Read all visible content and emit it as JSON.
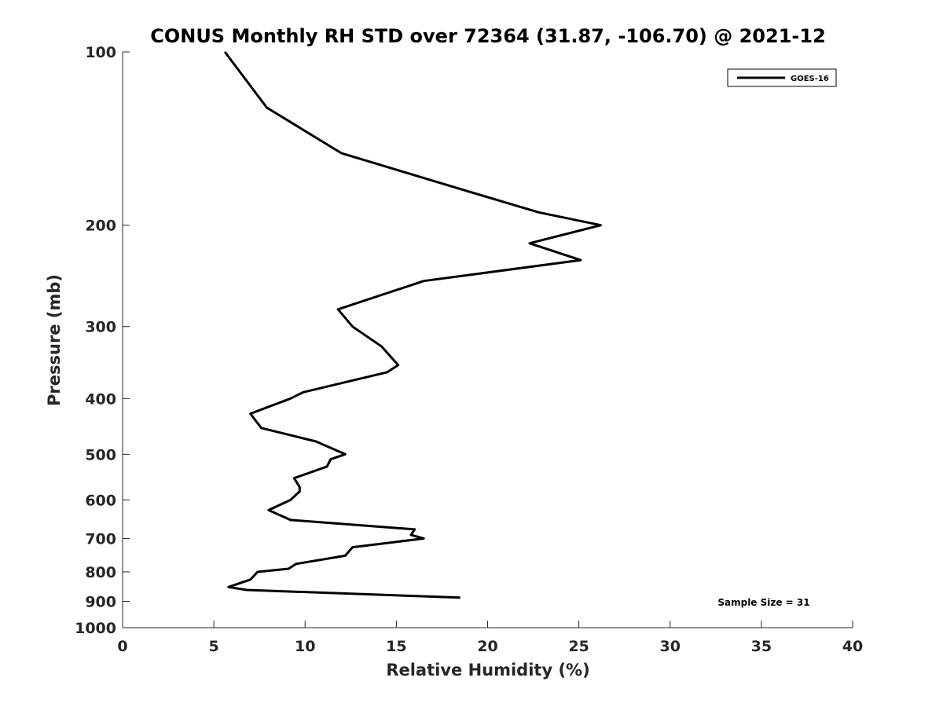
{
  "chart_data": {
    "type": "line",
    "title": "CONUS Monthly RH STD over 72364 (31.87, -106.70) @ 2021-12",
    "xlabel": "Relative Humidity (%)",
    "ylabel": "Pressure (mb)",
    "xlim": [
      0,
      40
    ],
    "ylim": [
      100,
      1000
    ],
    "y_scale": "log",
    "y_reversed": true,
    "x_ticks": [
      "0",
      "5",
      "10",
      "15",
      "20",
      "25",
      "30",
      "35",
      "40"
    ],
    "y_ticks": [
      "100",
      "200",
      "300",
      "400",
      "500",
      "600",
      "700",
      "800",
      "900",
      "1000"
    ],
    "grid": false,
    "legend_position": "top-right",
    "annotation": "Sample Size = 31",
    "series": [
      {
        "name": "GOES-16",
        "color": "#000000",
        "points": [
          [
            5.6,
            100
          ],
          [
            7.9,
            125
          ],
          [
            12.0,
            150
          ],
          [
            19.0,
            175
          ],
          [
            22.8,
            190
          ],
          [
            26.2,
            200
          ],
          [
            22.3,
            215
          ],
          [
            25.1,
            230
          ],
          [
            16.5,
            250
          ],
          [
            11.8,
            280
          ],
          [
            12.6,
            300
          ],
          [
            14.2,
            325
          ],
          [
            15.1,
            350
          ],
          [
            14.5,
            360
          ],
          [
            9.9,
            390
          ],
          [
            9.2,
            400
          ],
          [
            7.0,
            425
          ],
          [
            7.6,
            450
          ],
          [
            10.6,
            475
          ],
          [
            12.2,
            500
          ],
          [
            11.4,
            510
          ],
          [
            11.2,
            525
          ],
          [
            9.4,
            550
          ],
          [
            9.7,
            570
          ],
          [
            9.7,
            580
          ],
          [
            9.2,
            600
          ],
          [
            8.0,
            625
          ],
          [
            9.2,
            650
          ],
          [
            16.0,
            675
          ],
          [
            15.8,
            690
          ],
          [
            16.5,
            700
          ],
          [
            12.6,
            725
          ],
          [
            12.2,
            750
          ],
          [
            9.5,
            775
          ],
          [
            9.1,
            790
          ],
          [
            7.4,
            800
          ],
          [
            7.0,
            825
          ],
          [
            5.8,
            850
          ],
          [
            6.8,
            860
          ],
          [
            18.5,
            887
          ]
        ]
      }
    ]
  }
}
